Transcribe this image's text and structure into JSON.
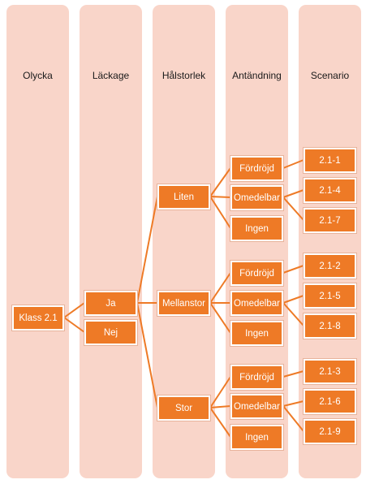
{
  "columns": [
    "Olycka",
    "Läckage",
    "Hålstorlek",
    "Antändning",
    "Scenario"
  ],
  "accident": "Klass 2.1",
  "leakage": [
    "Ja",
    "Nej"
  ],
  "hole_sizes": [
    "Liten",
    "Mellanstor",
    "Stor"
  ],
  "ignition": [
    "Fördröjd",
    "Omedelbar",
    "Ingen"
  ],
  "scenarios": [
    [
      "2.1-1",
      "2.1-4",
      "2.1-7"
    ],
    [
      "2.1-2",
      "2.1-5",
      "2.1-8"
    ],
    [
      "2.1-3",
      "2.1-6",
      "2.1-9"
    ]
  ],
  "colors": {
    "column_bg": "#f9d5c9",
    "node": "#ee7a26",
    "connector": "#ee7a26"
  }
}
